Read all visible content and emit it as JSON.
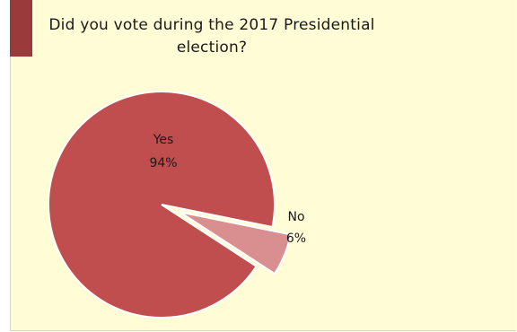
{
  "chart_data": {
    "type": "pie",
    "title": "Did you vote during the 2017 Presidential election?",
    "slices": [
      {
        "label": "Yes",
        "percent_label": "94%",
        "value": 94,
        "color": "#c04e4e"
      },
      {
        "label": "No",
        "percent_label": "6%",
        "value": 6,
        "color": "#d98f8f",
        "exploded": true
      }
    ],
    "legend": "none"
  }
}
